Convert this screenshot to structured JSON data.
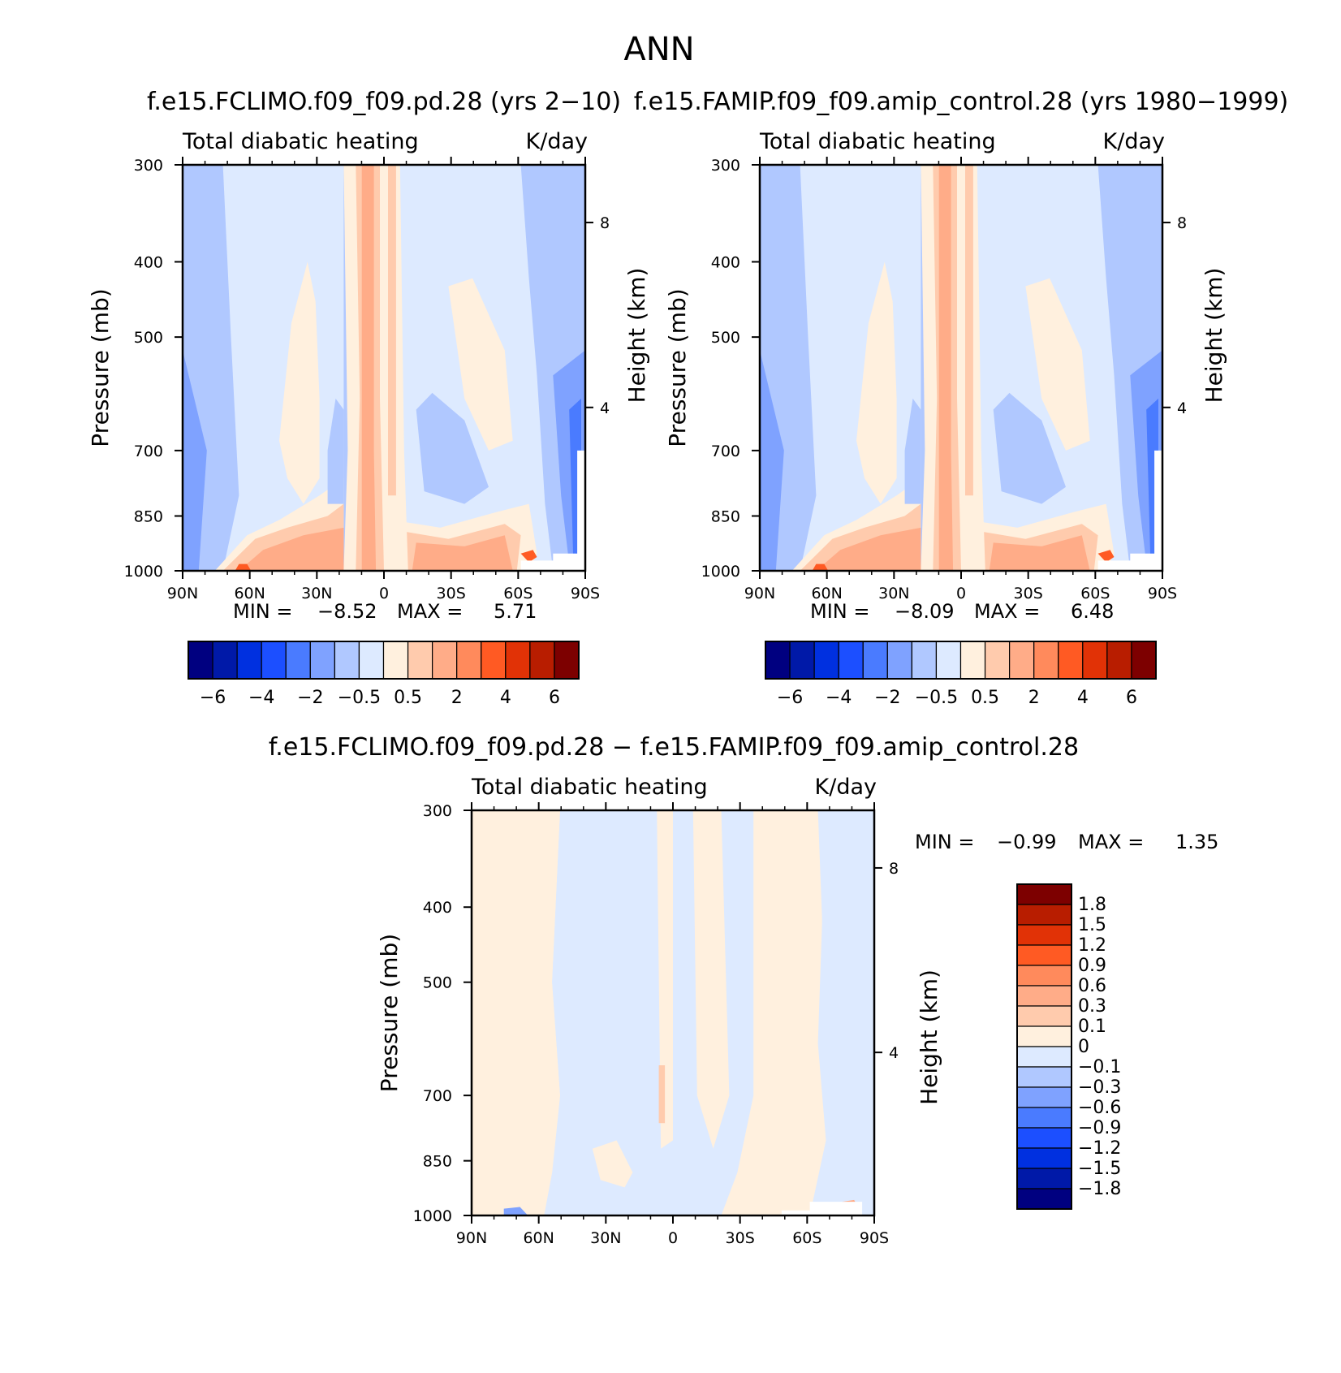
{
  "figure": {
    "title": "ANN"
  },
  "panels": [
    {
      "id": "climo",
      "title": "f.e15.FCLIMO.f09_f09.pd.28 (yrs 2-10)",
      "left_label": "Total diabatic heating",
      "right_label": "K/day",
      "stats": {
        "min_label": "MIN =",
        "min_value": "-8.52",
        "max_label": "MAX =",
        "max_value": "5.71"
      },
      "colorbar": {
        "orientation": "horizontal",
        "colors": [
          "#000080",
          "#0019a8",
          "#0030e0",
          "#1c4fff",
          "#4a7bff",
          "#7fa2ff",
          "#b0c8ff",
          "#ddeaff",
          "#fff0de",
          "#ffcbad",
          "#ffac88",
          "#ff8a5c",
          "#ff5a23",
          "#e13206",
          "#b81d00",
          "#7d0000"
        ],
        "labels": [
          "-6",
          "-4",
          "-2",
          "-0.5",
          "0.5",
          "2",
          "4",
          "6"
        ]
      }
    },
    {
      "id": "amip",
      "title": "f.e15.FAMIP.f09_f09.amip_control.28 (yrs 1980-1999)",
      "left_label": "Total diabatic heating",
      "right_label": "K/day",
      "stats": {
        "min_label": "MIN =",
        "min_value": "-8.09",
        "max_label": "MAX =",
        "max_value": "6.48"
      },
      "colorbar": {
        "orientation": "horizontal",
        "colors": [
          "#000080",
          "#0019a8",
          "#0030e0",
          "#1c4fff",
          "#4a7bff",
          "#7fa2ff",
          "#b0c8ff",
          "#ddeaff",
          "#fff0de",
          "#ffcbad",
          "#ffac88",
          "#ff8a5c",
          "#ff5a23",
          "#e13206",
          "#b81d00",
          "#7d0000"
        ],
        "labels": [
          "-6",
          "-4",
          "-2",
          "-0.5",
          "0.5",
          "2",
          "4",
          "6"
        ]
      }
    },
    {
      "id": "diff",
      "title": "f.e15.FCLIMO.f09_f09.pd.28 - f.e15.FAMIP.f09_f09.amip_control.28",
      "left_label": "Total diabatic heating",
      "right_label": "K/day",
      "stats": {
        "min_label": "MIN =",
        "min_value": "-0.99",
        "max_label": "MAX =",
        "max_value": "1.35"
      },
      "colorbar": {
        "orientation": "vertical",
        "colors_top_to_bottom": [
          "#7d0000",
          "#b81d00",
          "#e13206",
          "#ff5a23",
          "#ff8a5c",
          "#ffac88",
          "#ffcbad",
          "#fff0de",
          "#ddeaff",
          "#b0c8ff",
          "#7fa2ff",
          "#4a7bff",
          "#1c4fff",
          "#0030e0",
          "#0019a8",
          "#000080"
        ],
        "labels": [
          "1.8",
          "1.5",
          "1.2",
          "0.9",
          "0.6",
          "0.3",
          "0.1",
          "0",
          "-0.1",
          "-0.3",
          "-0.6",
          "-0.9",
          "-1.2",
          "-1.5",
          "-1.8"
        ]
      }
    }
  ],
  "chart_data": [
    {
      "type": "heatmap",
      "title": "f.e15.FCLIMO.f09_f09.pd.28 (yrs 2-10)",
      "variable": "Total diabatic heating",
      "units": "K/day",
      "xlabel": "",
      "ylabel": "Pressure (mb)",
      "y2label": "Height (km)",
      "x_ticks": [
        "90N",
        "60N",
        "30N",
        "0",
        "30S",
        "60S",
        "90S"
      ],
      "y_ticks": [
        300,
        400,
        500,
        700,
        850,
        1000
      ],
      "y2_ticks": [
        8,
        4
      ],
      "ylim": [
        1000,
        300
      ],
      "y_scale": "log",
      "min": -8.52,
      "max": 5.71,
      "levels": [
        -6,
        -5,
        -4,
        -3,
        -2,
        -1,
        -0.5,
        0,
        0.5,
        1,
        2,
        3,
        4,
        5,
        6
      ]
    },
    {
      "type": "heatmap",
      "title": "f.e15.FAMIP.f09_f09.amip_control.28 (yrs 1980-1999)",
      "variable": "Total diabatic heating",
      "units": "K/day",
      "xlabel": "",
      "ylabel": "Pressure (mb)",
      "y2label": "Height (km)",
      "x_ticks": [
        "90N",
        "60N",
        "30N",
        "0",
        "30S",
        "60S",
        "90S"
      ],
      "y_ticks": [
        300,
        400,
        500,
        700,
        850,
        1000
      ],
      "y2_ticks": [
        8,
        4
      ],
      "ylim": [
        1000,
        300
      ],
      "y_scale": "log",
      "min": -8.09,
      "max": 6.48,
      "levels": [
        -6,
        -5,
        -4,
        -3,
        -2,
        -1,
        -0.5,
        0,
        0.5,
        1,
        2,
        3,
        4,
        5,
        6
      ]
    },
    {
      "type": "heatmap",
      "title": "f.e15.FCLIMO.f09_f09.pd.28 - f.e15.FAMIP.f09_f09.amip_control.28",
      "variable": "Total diabatic heating",
      "units": "K/day",
      "xlabel": "",
      "ylabel": "Pressure (mb)",
      "y2label": "Height (km)",
      "x_ticks": [
        "90N",
        "60N",
        "30N",
        "0",
        "30S",
        "60S",
        "90S"
      ],
      "y_ticks": [
        300,
        400,
        500,
        700,
        850,
        1000
      ],
      "y2_ticks": [
        8,
        4
      ],
      "ylim": [
        1000,
        300
      ],
      "y_scale": "log",
      "min": -0.99,
      "max": 1.35,
      "levels": [
        -1.8,
        -1.5,
        -1.2,
        -0.9,
        -0.6,
        -0.3,
        -0.1,
        0,
        0.1,
        0.3,
        0.6,
        0.9,
        1.2,
        1.5,
        1.8
      ]
    }
  ]
}
